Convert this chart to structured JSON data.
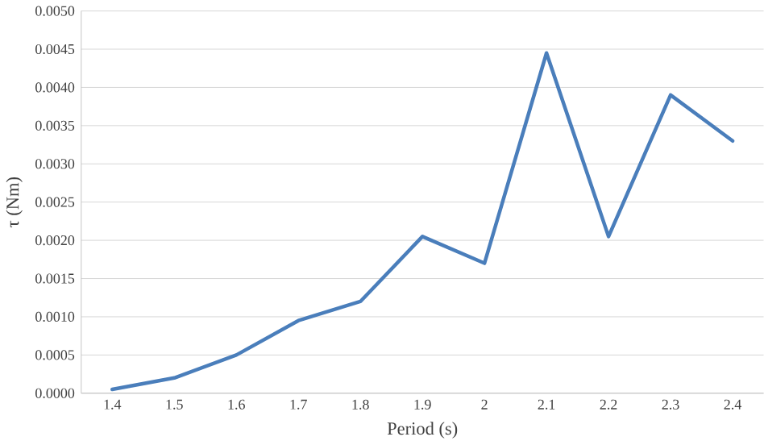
{
  "chart_data": {
    "type": "line",
    "xlabel": "Period (s)",
    "ylabel": "τ (Nm)",
    "categories": [
      "1.4",
      "1.5",
      "1.6",
      "1.7",
      "1.8",
      "1.9",
      "2",
      "2.1",
      "2.2",
      "2.3",
      "2.4"
    ],
    "series": [
      {
        "color": "#4a7ebb",
        "values": [
          5e-05,
          0.0002,
          0.0005,
          0.00095,
          0.0012,
          0.00205,
          0.0017,
          0.00445,
          0.00205,
          0.0039,
          0.0033
        ]
      }
    ],
    "ylim": [
      0,
      0.005
    ],
    "yticks": [
      {
        "value": 0,
        "label": "0.0000"
      },
      {
        "value": 0.0005,
        "label": "0.0005"
      },
      {
        "value": 0.001,
        "label": "0.0010"
      },
      {
        "value": 0.0015,
        "label": "0.0015"
      },
      {
        "value": 0.002,
        "label": "0.0020"
      },
      {
        "value": 0.0025,
        "label": "0.0025"
      },
      {
        "value": 0.003,
        "label": "0.0030"
      },
      {
        "value": 0.0035,
        "label": "0.0035"
      },
      {
        "value": 0.004,
        "label": "0.0040"
      },
      {
        "value": 0.0045,
        "label": "0.0045"
      },
      {
        "value": 0.005,
        "label": "0.0050"
      }
    ],
    "grid": "y",
    "marker": "none",
    "line_style": "solid"
  }
}
